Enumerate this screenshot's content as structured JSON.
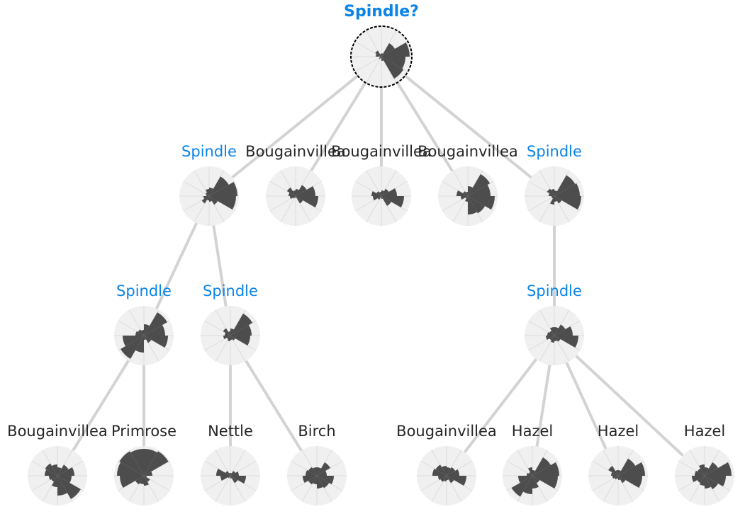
{
  "colors": {
    "edge": "#d3d3d3",
    "disc": "#f0f0f0",
    "spoke": "#dcdcdc",
    "petal": "#4d4d4d",
    "label_default": "#262626",
    "label_highlight": "#0a84e8",
    "focus_ring": "#000000"
  },
  "root": {
    "label": "Spindle?",
    "highlight": true,
    "focused": true,
    "petals": [
      0.12,
      0.55,
      1.0,
      0.85,
      0.9,
      0.15,
      0.05,
      0.1,
      0.05,
      0.2,
      0.25,
      0.1
    ]
  },
  "level1": [
    {
      "label": "Spindle",
      "highlight": true,
      "petals": [
        0.3,
        0.8,
        1.0,
        0.95,
        0.35,
        0.2,
        0.15,
        0.3,
        0.2,
        0.1,
        0.15,
        0.25
      ]
    },
    {
      "label": "Bougainvillea",
      "highlight": false,
      "petals": [
        0.25,
        0.45,
        0.7,
        0.8,
        0.3,
        0.05,
        0.05,
        0.1,
        0.2,
        0.25,
        0.35,
        0.2
      ]
    },
    {
      "label": "Bougainvillea",
      "highlight": false,
      "petals": [
        0.2,
        0.3,
        0.55,
        0.8,
        0.4,
        0.1,
        0.05,
        0.15,
        0.3,
        0.35,
        0.2,
        0.15
      ]
    },
    {
      "label": "Bougainvillea",
      "highlight": false,
      "petals": [
        0.35,
        0.9,
        0.8,
        0.95,
        0.7,
        0.65,
        0.2,
        0.1,
        0.25,
        0.4,
        0.2,
        0.15
      ]
    },
    {
      "label": "Spindle",
      "highlight": true,
      "petals": [
        0.2,
        0.85,
        0.9,
        0.95,
        0.3,
        0.2,
        0.3,
        0.1,
        0.1,
        0.2,
        0.3,
        0.25
      ]
    }
  ],
  "level2": [
    {
      "label": "Spindle",
      "highlight": true,
      "petals": [
        0.4,
        0.95,
        0.75,
        0.85,
        0.3,
        0.15,
        0.6,
        0.95,
        0.75,
        0.3,
        0.25,
        0.2
      ]
    },
    {
      "label": "Spindle",
      "highlight": true,
      "petals": [
        0.25,
        0.9,
        0.75,
        0.7,
        0.2,
        0.15,
        0.2,
        0.15,
        0.25,
        0.2,
        0.3,
        0.15
      ]
    },
    {
      "label": "Spindle",
      "highlight": true,
      "petals": [
        0.3,
        0.45,
        0.65,
        0.85,
        0.25,
        0.2,
        0.25,
        0.2,
        0.3,
        0.25,
        0.2,
        0.3
      ]
    }
  ],
  "level3": [
    {
      "label": "Bougainvillea",
      "highlight": false,
      "petals": [
        0.3,
        0.45,
        0.6,
        0.5,
        0.95,
        0.7,
        0.4,
        0.25,
        0.3,
        0.45,
        0.5,
        0.4
      ]
    },
    {
      "label": "Primrose",
      "highlight": false,
      "petals": [
        0.95,
        1.0,
        0.3,
        0.1,
        0.25,
        0.35,
        0.3,
        0.35,
        0.85,
        0.95,
        1.0,
        0.95
      ]
    },
    {
      "label": "Nettle",
      "highlight": false,
      "petals": [
        0.1,
        0.2,
        0.3,
        0.55,
        0.3,
        0.1,
        0.05,
        0.1,
        0.35,
        0.5,
        0.2,
        0.1
      ]
    },
    {
      "label": "Birch",
      "highlight": false,
      "petals": [
        0.3,
        0.55,
        0.35,
        0.6,
        0.5,
        0.45,
        0.3,
        0.35,
        0.5,
        0.4,
        0.35,
        0.3
      ]
    },
    {
      "label": "Bougainvillea",
      "highlight": false,
      "petals": [
        0.3,
        0.35,
        0.45,
        0.7,
        0.3,
        0.15,
        0.2,
        0.25,
        0.3,
        0.5,
        0.45,
        0.35
      ]
    },
    {
      "label": "Hazel",
      "highlight": false,
      "petals": [
        0.2,
        0.75,
        0.95,
        0.9,
        0.3,
        0.45,
        0.65,
        0.85,
        0.5,
        0.2,
        0.15,
        0.3
      ]
    },
    {
      "label": "Hazel",
      "highlight": false,
      "petals": [
        0.2,
        0.7,
        0.95,
        0.85,
        0.3,
        0.15,
        0.1,
        0.15,
        0.2,
        0.25,
        0.4,
        0.2
      ]
    },
    {
      "label": "Hazel",
      "highlight": false,
      "petals": [
        0.3,
        0.55,
        0.95,
        0.75,
        0.55,
        0.45,
        0.35,
        0.3,
        0.45,
        0.35,
        0.3,
        0.4
      ]
    }
  ]
}
